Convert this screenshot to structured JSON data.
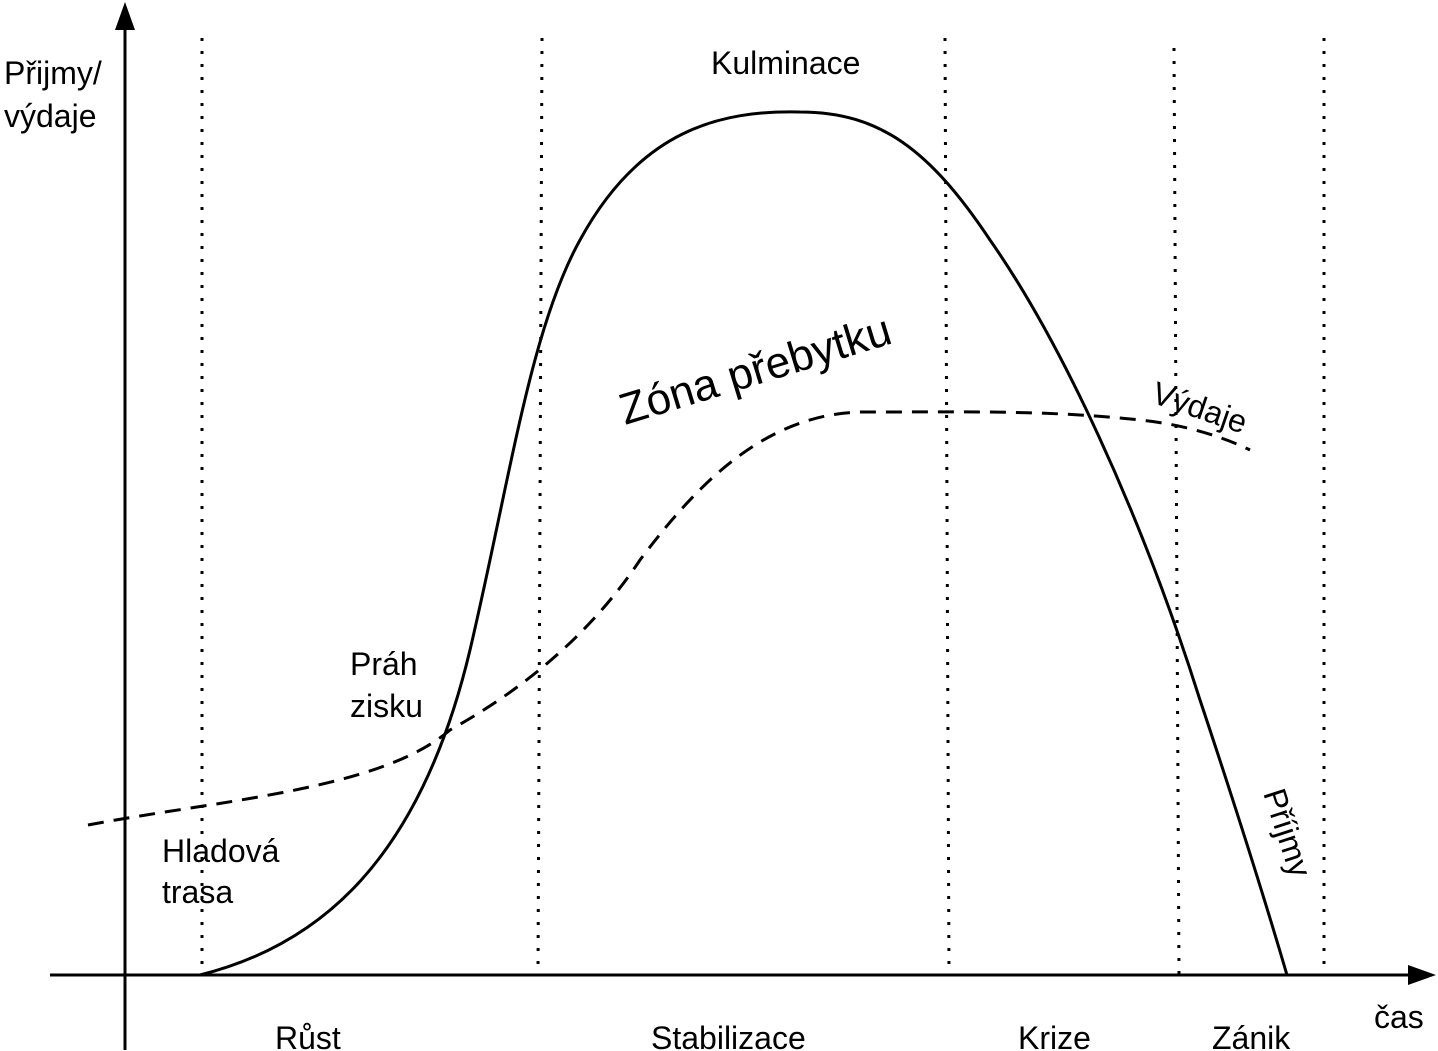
{
  "axes": {
    "y_label_line1": "Přijmy/",
    "y_label_line2": "výdaje",
    "x_label": "čas"
  },
  "phases": [
    "Růst",
    "Stabilizace",
    "Krize",
    "Zánik"
  ],
  "annotations": {
    "peak": "Kulminace",
    "surplus_zone": "Zóna přebytku",
    "threshold_line1": "Práh",
    "threshold_line2": "zisku",
    "starvation_line1": "Hladová",
    "starvation_line2": "trasa"
  },
  "curves": {
    "income_label": "Příjmy",
    "expenses_label": "Výdaje"
  },
  "colors": {
    "ink": "#000000",
    "background": "#ffffff"
  }
}
